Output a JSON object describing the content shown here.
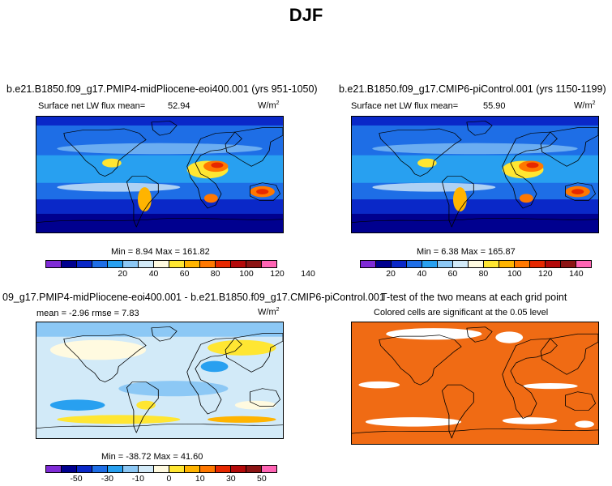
{
  "figure": {
    "title": "DJF"
  },
  "panels": {
    "top_left": {
      "title": "b.e21.B1850.f09_g17.PMIP4-midPliocene-eoi400.001 (yrs 951-1050)",
      "subtitle_label": "Surface net LW flux mean=",
      "subtitle_value": "52.94",
      "units": "W/m",
      "units_exp": "2",
      "minmax": "Min =    8.94  Max = 161.82"
    },
    "top_right": {
      "title": "b.e21.B1850.f09_g17.CMIP6-piControl.001 (yrs 1150-1199)",
      "subtitle_label": "Surface net LW flux mean=",
      "subtitle_value": "55.90",
      "units": "W/m",
      "units_exp": "2",
      "minmax": "Min =    6.38  Max = 165.87"
    },
    "bottom_left": {
      "title": "09_g17.PMIP4-midPliocene-eoi400.001 - b.e21.B1850.f09_g17.CMIP6-piControl.001",
      "subtitle": "mean =   -2.96      rmse =    7.83",
      "units": "W/m",
      "units_exp": "2",
      "minmax": "Min = -38.72  Max =  41.60"
    },
    "bottom_right": {
      "title": "T-test of the two means at each grid point",
      "subtitle": "Colored cells are significant at the 0.05 level"
    }
  },
  "colorbars": {
    "absolute": {
      "colors": [
        "#7f2bd6",
        "#00008f",
        "#0a28c8",
        "#1e6ee6",
        "#28a0f0",
        "#8cc8f5",
        "#d2eaf8",
        "#fffae0",
        "#ffe632",
        "#ffb400",
        "#ff7800",
        "#e62800",
        "#b40a0a",
        "#8c1414",
        "#ff64b4"
      ],
      "tick_labels": [
        "20",
        "40",
        "60",
        "80",
        "100",
        "120",
        "140"
      ]
    },
    "difference": {
      "colors": [
        "#7f2bd6",
        "#00008f",
        "#0a28c8",
        "#1e6ee6",
        "#28a0f0",
        "#8cc8f5",
        "#d2eaf8",
        "#fffae0",
        "#ffe632",
        "#ffb400",
        "#ff7800",
        "#e62800",
        "#b40a0a",
        "#8c1414",
        "#ff64b4"
      ],
      "tick_labels": [
        "-50",
        "-30",
        "-10",
        "0",
        "10",
        "30",
        "50"
      ]
    }
  },
  "colors": {
    "significance": "#f06b14",
    "ocean_base": "#1e6ee6",
    "land_dry": "#ff7800"
  }
}
